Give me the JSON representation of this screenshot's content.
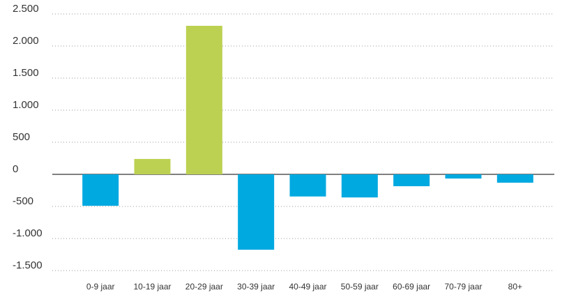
{
  "chart_data": {
    "type": "bar",
    "categories": [
      "0-9 jaar",
      "10-19 jaar",
      "20-29 jaar",
      "30-39 jaar",
      "40-49 jaar",
      "50-59 jaar",
      "60-69 jaar",
      "70-79 jaar",
      "80+"
    ],
    "values": [
      -490,
      240,
      2315,
      -1175,
      -345,
      -360,
      -185,
      -65,
      -130
    ],
    "positive_color": "#bcd151",
    "negative_color": "#00a9e0",
    "ylim": [
      -1500,
      2500
    ],
    "yticks": [
      {
        "value": 2500,
        "label": "2.500"
      },
      {
        "value": 2000,
        "label": "2.000"
      },
      {
        "value": 1500,
        "label": "1.500"
      },
      {
        "value": 1000,
        "label": "1.000"
      },
      500,
      0,
      -500,
      {
        "value": -1000,
        "label": "-1.000"
      },
      {
        "value": -1500,
        "label": "-1.500"
      }
    ],
    "grid": true
  }
}
